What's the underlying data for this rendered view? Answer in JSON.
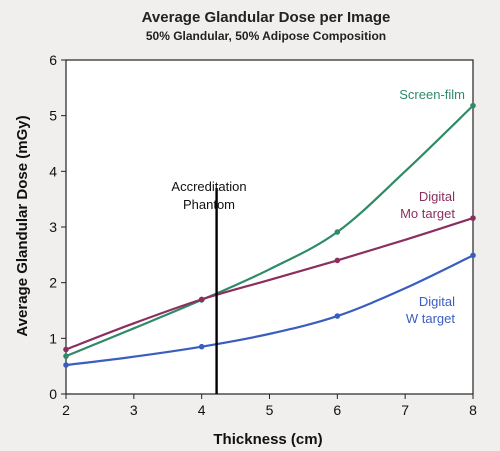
{
  "chart_data": {
    "type": "line",
    "title": "Average Glandular Dose per Image",
    "subtitle": "50% Glandular, 50% Adipose Composition",
    "xlabel": "Thickness (cm)",
    "ylabel": "Average Glandular Dose (mGy)",
    "xlim": [
      2,
      8
    ],
    "ylim": [
      0,
      6
    ],
    "xticks": [
      "2",
      "3",
      "4",
      "5",
      "6",
      "7",
      "8"
    ],
    "yticks": [
      "0",
      "1",
      "2",
      "3",
      "4",
      "5",
      "6"
    ],
    "grid": false,
    "series": [
      {
        "name": "Screen-film",
        "color": "#2e8b66",
        "points": [
          [
            2,
            0.68
          ],
          [
            4,
            1.69
          ],
          [
            6,
            2.91
          ],
          [
            8,
            5.18
          ]
        ],
        "curve": [
          [
            2,
            0.68
          ],
          [
            3,
            1.18
          ],
          [
            4,
            1.69
          ],
          [
            5,
            2.24
          ],
          [
            6,
            2.91
          ],
          [
            7,
            4.0
          ],
          [
            8,
            5.18
          ]
        ]
      },
      {
        "name": "Digital Mo target",
        "color": "#8b2f5f",
        "points": [
          [
            2,
            0.8
          ],
          [
            4,
            1.7
          ],
          [
            6,
            2.4
          ],
          [
            8,
            3.16
          ]
        ],
        "curve": [
          [
            2,
            0.8
          ],
          [
            3,
            1.27
          ],
          [
            4,
            1.7
          ],
          [
            5,
            2.05
          ],
          [
            6,
            2.4
          ],
          [
            7,
            2.77
          ],
          [
            8,
            3.16
          ]
        ]
      },
      {
        "name": "Digital W target",
        "color": "#3a5ec0",
        "points": [
          [
            2,
            0.52
          ],
          [
            4,
            0.85
          ],
          [
            6,
            1.4
          ],
          [
            8,
            2.49
          ]
        ],
        "curve": [
          [
            2,
            0.52
          ],
          [
            3,
            0.67
          ],
          [
            4,
            0.85
          ],
          [
            5,
            1.08
          ],
          [
            6,
            1.4
          ],
          [
            7,
            1.9
          ],
          [
            8,
            2.49
          ]
        ]
      }
    ],
    "series_labels": [
      {
        "lines": [
          "Screen-film"
        ],
        "color": "#2e8b66"
      },
      {
        "lines": [
          "Digital",
          "Mo target"
        ],
        "color": "#8b2f5f"
      },
      {
        "lines": [
          "Digital",
          "W target"
        ],
        "color": "#3a5ec0"
      }
    ],
    "annotation": {
      "lines": [
        "Accreditation",
        "Phantom"
      ],
      "x": 4.22,
      "y_range": [
        0,
        3.7
      ]
    }
  }
}
